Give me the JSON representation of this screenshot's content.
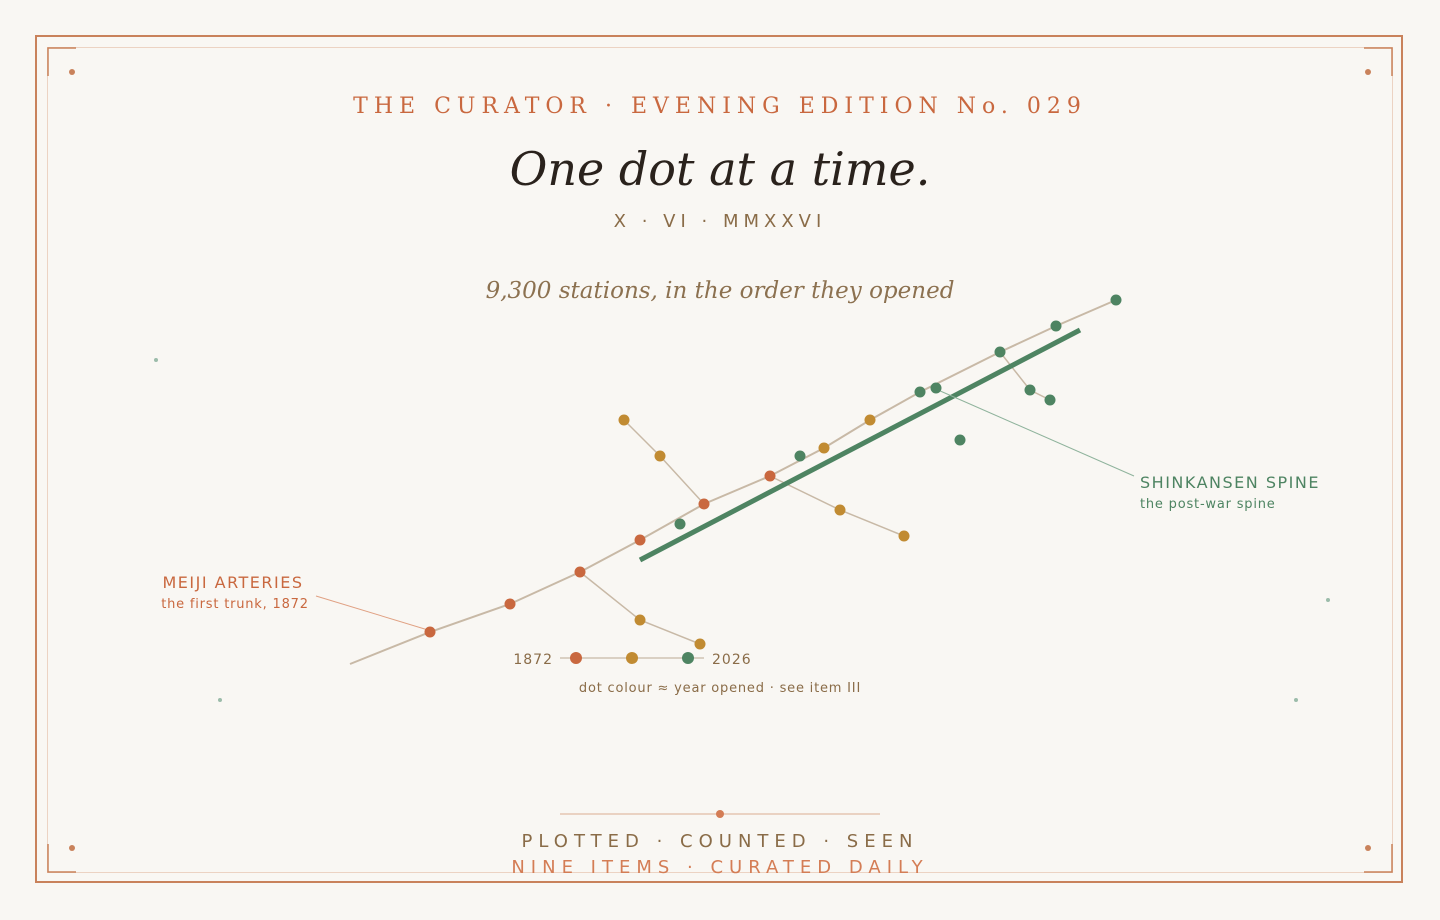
{
  "header": {
    "kicker": "THE CURATOR · EVENING EDITION No. 029",
    "headline": "One dot at a time.",
    "dateline": "X · VI · MMXXVI"
  },
  "colors": {
    "accent": "#c9683f",
    "early": "#c9683f",
    "mid": "#c18b32",
    "late": "#4e8462",
    "line": "#c8b9a6",
    "frame": "#c9825b"
  },
  "chart_data": {
    "type": "scatter",
    "title": "9,300 stations, in the order they opened",
    "annotations": [
      {
        "label": "MEIJI ARTERIES",
        "sublabel": "the first trunk, 1872",
        "color": "#c9683f"
      },
      {
        "label": "SHINKANSEN SPINE",
        "sublabel": "the post-war spine",
        "color": "#4e8462"
      }
    ],
    "legend": {
      "start_label": "1872",
      "end_label": "2026",
      "caption": "dot colour ≈ year opened · see item III",
      "colors": [
        "#c9683f",
        "#c18b32",
        "#4e8462"
      ]
    },
    "grid": false
  },
  "footer": {
    "line1": "PLOTTED · COUNTED · SEEN",
    "line2": "NINE ITEMS · CURATED DAILY"
  }
}
